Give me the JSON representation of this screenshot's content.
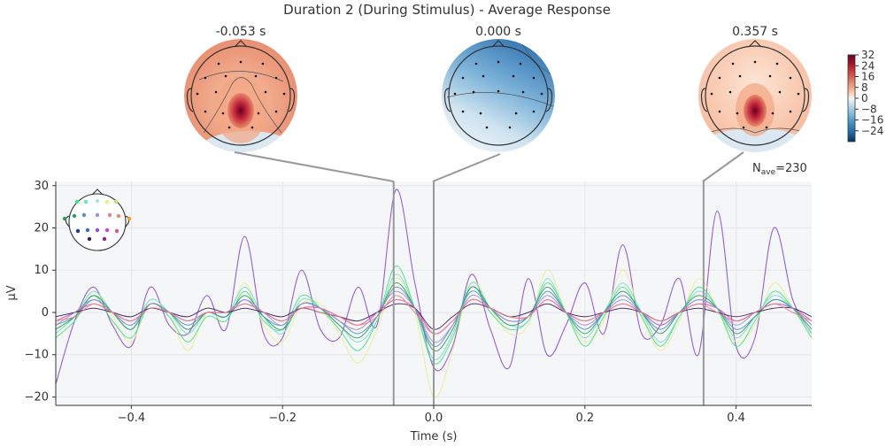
{
  "figure": {
    "title": "Duration 2 (During Stimulus) - Average Response",
    "nave_label": "N",
    "nave_sub": "ave",
    "nave_value": "=230"
  },
  "topomaps": [
    {
      "label": "-0.053 s",
      "time": -0.053
    },
    {
      "label": "0.000 s",
      "time": 0.0
    },
    {
      "label": "0.357 s",
      "time": 0.357
    }
  ],
  "colorbar": {
    "colormap": "RdBu_r",
    "range": [
      -32,
      32
    ],
    "ticks": [
      {
        "value": 32,
        "label": "32"
      },
      {
        "value": 24,
        "label": "24"
      },
      {
        "value": 16,
        "label": "16"
      },
      {
        "value": 8,
        "label": "8"
      },
      {
        "value": 0,
        "label": "0"
      },
      {
        "value": -8,
        "label": "−8"
      },
      {
        "value": -16,
        "label": "−16"
      },
      {
        "value": -24,
        "label": "−24"
      }
    ]
  },
  "chart_data": {
    "type": "line",
    "title": "Duration 2 (During Stimulus) - Average Response",
    "xlabel": "Time (s)",
    "ylabel": "µV",
    "xlim": [
      -0.5,
      0.5
    ],
    "ylim": [
      -22,
      31
    ],
    "xticks": [
      {
        "value": -0.4,
        "label": "−0.4"
      },
      {
        "value": -0.2,
        "label": "−0.2"
      },
      {
        "value": 0.0,
        "label": "0.0"
      },
      {
        "value": 0.2,
        "label": "0.2"
      },
      {
        "value": 0.4,
        "label": "0.4"
      }
    ],
    "yticks": [
      {
        "value": 30,
        "label": "30"
      },
      {
        "value": 20,
        "label": "20"
      },
      {
        "value": 10,
        "label": "10"
      },
      {
        "value": 0,
        "label": "0"
      },
      {
        "value": -10,
        "label": "−10"
      },
      {
        "value": -20,
        "label": "−20"
      }
    ],
    "grid": true,
    "markers": [
      -0.053,
      0.0,
      0.357
    ],
    "x": [
      -0.5,
      -0.475,
      -0.45,
      -0.425,
      -0.4,
      -0.375,
      -0.35,
      -0.325,
      -0.3,
      -0.275,
      -0.25,
      -0.225,
      -0.2,
      -0.175,
      -0.15,
      -0.125,
      -0.1,
      -0.075,
      -0.05,
      -0.025,
      0.0,
      0.025,
      0.05,
      0.075,
      0.1,
      0.125,
      0.15,
      0.175,
      0.2,
      0.225,
      0.25,
      0.275,
      0.3,
      0.325,
      0.35,
      0.375,
      0.4,
      0.425,
      0.45,
      0.475,
      0.5
    ],
    "series": [
      {
        "color": "#8b4fd8",
        "values": [
          -17,
          -2,
          6,
          -3,
          -8,
          6,
          -3,
          -5,
          4,
          -4,
          18,
          -5,
          -6,
          10,
          -4,
          -6,
          6,
          -3,
          29,
          7,
          -13,
          -8,
          9,
          -4,
          -13,
          8,
          -10,
          -3,
          7,
          -5,
          16,
          -5,
          -3,
          8,
          -10,
          24,
          -8,
          -6,
          20,
          3,
          -5
        ]
      },
      {
        "color": "#ecec8e",
        "values": [
          -4,
          -1,
          5,
          -1,
          -7,
          3,
          -1,
          -9,
          0,
          -2,
          7,
          -3,
          -7,
          2,
          2,
          -5,
          -12,
          -4,
          8,
          0,
          -20,
          -9,
          7,
          1,
          -5,
          -3,
          10,
          0,
          -7,
          -2,
          10,
          -1,
          -9,
          -2,
          8,
          1,
          -7,
          -3,
          7,
          1,
          -6
        ]
      },
      {
        "color": "#3ee57a",
        "values": [
          -6,
          -2,
          4,
          -2,
          -6,
          2,
          -1,
          -7,
          -1,
          -2,
          5,
          -2,
          -4,
          4,
          1,
          -4,
          -9,
          -2,
          11,
          1,
          -12,
          -6,
          6,
          0,
          -4,
          -2,
          7,
          0,
          -8,
          -1,
          6,
          -1,
          -8,
          -1,
          6,
          1,
          -8,
          -2,
          5,
          1,
          -6
        ]
      },
      {
        "color": "#6ee0c4",
        "values": [
          -5,
          -1,
          5,
          0,
          -4,
          3,
          0,
          -5,
          0,
          -1,
          6,
          -1,
          -5,
          3,
          1,
          -3,
          -7,
          -2,
          9,
          1,
          -11,
          -5,
          7,
          1,
          -3,
          -2,
          8,
          0,
          -6,
          0,
          7,
          0,
          -7,
          -1,
          5,
          1,
          -6,
          -1,
          4,
          1,
          -5
        ]
      },
      {
        "color": "#2f9c5a",
        "values": [
          -4,
          -1,
          4,
          0,
          -4,
          2,
          0,
          -4,
          0,
          -1,
          4,
          -1,
          -4,
          2,
          1,
          -3,
          -6,
          -1,
          7,
          1,
          -9,
          -4,
          6,
          1,
          -3,
          -1,
          6,
          0,
          -5,
          0,
          5,
          0,
          -5,
          0,
          4,
          1,
          -5,
          -1,
          3,
          1,
          -4
        ]
      },
      {
        "color": "#4e95c9",
        "values": [
          -3,
          -1,
          3,
          0,
          -3,
          2,
          0,
          -3,
          0,
          -1,
          3,
          -1,
          -3,
          2,
          1,
          -2,
          -5,
          -1,
          6,
          1,
          -8,
          -3,
          5,
          1,
          -2,
          -1,
          5,
          0,
          -4,
          0,
          4,
          0,
          -4,
          0,
          3,
          1,
          -4,
          -1,
          3,
          1,
          -3
        ]
      },
      {
        "color": "#e04ea0",
        "values": [
          -2,
          0,
          2,
          0,
          -2,
          1,
          0,
          -2,
          0,
          0,
          2,
          0,
          -2,
          1,
          1,
          -1,
          -3,
          0,
          3,
          1,
          -5,
          -2,
          3,
          1,
          -1,
          -1,
          3,
          0,
          -2,
          0,
          2,
          0,
          -3,
          0,
          2,
          1,
          -2,
          0,
          2,
          1,
          -2
        ]
      },
      {
        "color": "#3a1f5e",
        "values": [
          -1,
          0,
          1,
          0,
          -1,
          1,
          0,
          -1,
          1,
          0,
          1,
          0,
          -1,
          1,
          0,
          -1,
          -2,
          0,
          2,
          1,
          -4,
          -1,
          2,
          1,
          -1,
          0,
          2,
          0,
          -1,
          0,
          1,
          0,
          -2,
          0,
          1,
          0,
          -1,
          0,
          1,
          1,
          -1
        ]
      },
      {
        "color": "#a78ad8",
        "values": [
          -3,
          0,
          3,
          0,
          -3,
          2,
          0,
          -2,
          0,
          0,
          3,
          0,
          -3,
          2,
          1,
          -2,
          -4,
          0,
          5,
          1,
          -7,
          -3,
          4,
          1,
          -2,
          -1,
          4,
          0,
          -3,
          0,
          3,
          0,
          -3,
          0,
          3,
          1,
          -3,
          0,
          2,
          1,
          -3
        ]
      },
      {
        "color": "#f08080",
        "values": [
          -2,
          -1,
          2,
          0,
          -2,
          1,
          0,
          -2,
          0,
          0,
          2,
          0,
          -2,
          1,
          0,
          -1,
          -3,
          -1,
          4,
          0,
          -5,
          -2,
          3,
          1,
          -1,
          -1,
          3,
          0,
          -2,
          0,
          2,
          0,
          -2,
          0,
          2,
          0,
          -2,
          0,
          2,
          0,
          -2
        ]
      }
    ]
  }
}
